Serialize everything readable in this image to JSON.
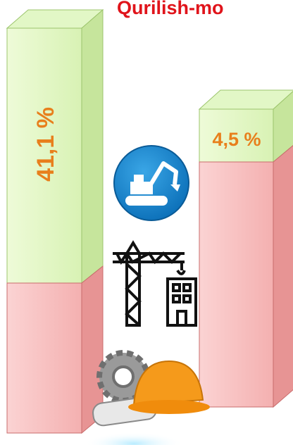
{
  "title": "Qurilish-mo",
  "bars": [
    {
      "label": "41,1 %"
    },
    {
      "label": "4,5 %"
    }
  ]
}
